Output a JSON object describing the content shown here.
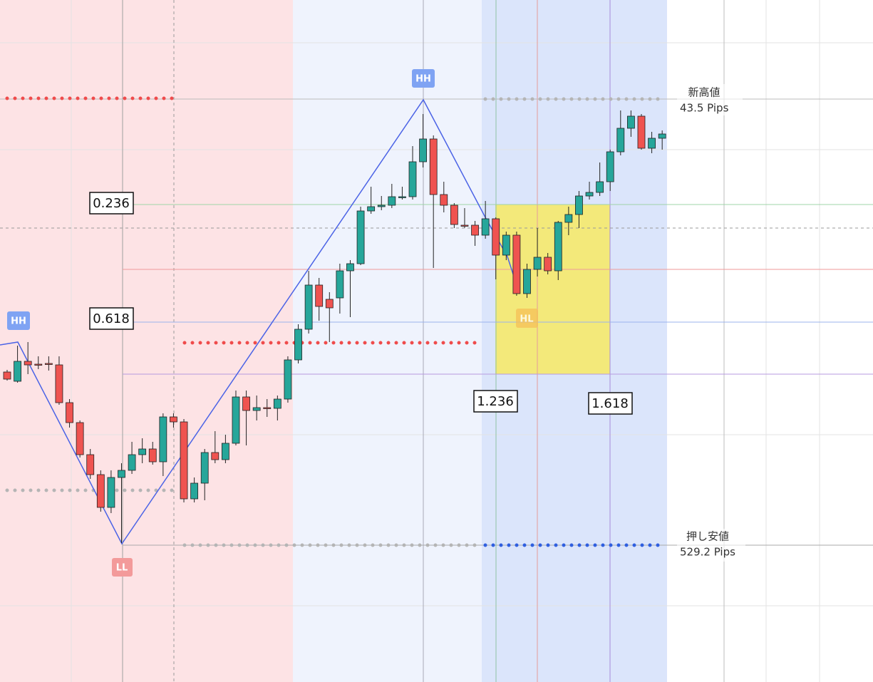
{
  "chart_data": {
    "type": "candlestick",
    "categories": [
      null,
      null,
      null,
      null,
      null,
      null,
      null,
      null,
      null,
      null,
      null,
      null,
      null,
      null,
      null,
      null,
      null,
      null,
      null,
      null,
      null,
      null,
      null,
      null,
      null,
      null,
      null,
      null,
      null,
      null,
      null,
      null,
      null,
      null,
      null,
      null,
      null,
      null,
      null,
      null,
      null,
      null,
      null,
      null,
      null,
      null,
      null,
      null,
      null,
      null,
      null,
      null,
      null,
      null,
      null,
      null,
      null,
      null,
      null,
      null,
      null,
      null,
      null,
      null
    ],
    "open": [
      435,
      422,
      450,
      446,
      447,
      445,
      392,
      364,
      319,
      291,
      245,
      287,
      297,
      319,
      327,
      309,
      372,
      365,
      257,
      279,
      322,
      312,
      335,
      400,
      381,
      385,
      384,
      397,
      452,
      495,
      557,
      537,
      539,
      577,
      587,
      661,
      667,
      669,
      681,
      681,
      730,
      762,
      684,
      669,
      641,
      641,
      627,
      650,
      599,
      627,
      545,
      579,
      596,
      577,
      645,
      656,
      682,
      687,
      702,
      744,
      777,
      794,
      749,
      763
    ],
    "high": [
      438,
      472,
      477,
      457,
      457,
      457,
      397,
      367,
      327,
      297,
      297,
      307,
      337,
      342,
      337,
      377,
      377,
      369,
      287,
      327,
      352,
      347,
      409,
      409,
      402,
      397,
      402,
      457,
      502,
      577,
      567,
      547,
      587,
      592,
      667,
      695,
      682,
      699,
      695,
      752,
      797,
      767,
      702,
      672,
      665,
      647,
      675,
      652,
      632,
      632,
      587,
      637,
      602,
      647,
      667,
      689,
      702,
      729,
      747,
      802,
      802,
      797,
      772,
      774
    ],
    "low": [
      423,
      420,
      432,
      439,
      437,
      389,
      357,
      315,
      285,
      239,
      237,
      195,
      292,
      307,
      305,
      289,
      357,
      252,
      252,
      255,
      307,
      307,
      332,
      332,
      367,
      372,
      367,
      392,
      447,
      489,
      507,
      477,
      517,
      512,
      585,
      657,
      662,
      665,
      677,
      677,
      722,
      581,
      659,
      637,
      637,
      612,
      622,
      565,
      592,
      542,
      539,
      569,
      572,
      564,
      627,
      637,
      677,
      682,
      689,
      739,
      765,
      747,
      742,
      747
    ],
    "close": [
      425,
      450,
      445,
      445,
      446,
      392,
      364,
      319,
      291,
      245,
      287,
      297,
      319,
      327,
      309,
      372,
      365,
      257,
      279,
      322,
      312,
      335,
      400,
      381,
      385,
      384,
      397,
      452,
      495,
      557,
      527,
      525,
      577,
      587,
      661,
      667,
      669,
      681,
      681,
      730,
      762,
      684,
      669,
      642,
      640,
      627,
      650,
      599,
      627,
      545,
      579,
      596,
      577,
      645,
      656,
      682,
      687,
      702,
      744,
      777,
      794,
      749,
      763,
      769
    ],
    "up_color": "#26a69a",
    "down_color": "#ef5350",
    "ylim": [
      0,
      957
    ],
    "fib_labels": [
      "0.236",
      "0.618",
      "1.236",
      "1.618"
    ],
    "annotations": {
      "new_high": "新高値",
      "new_high_pips": "43.5 Pips",
      "pullback_low": "押し安値",
      "pullback_low_pips": "529.2 Pips"
    },
    "pivots": [
      "HH",
      "HH",
      "LL",
      "HL"
    ]
  }
}
